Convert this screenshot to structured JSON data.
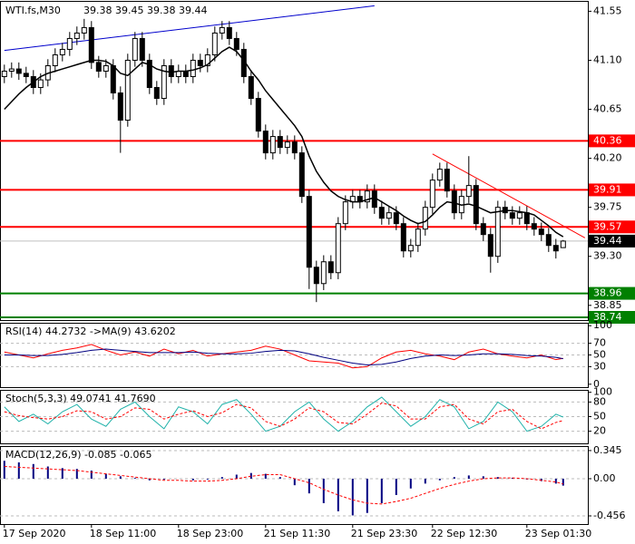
{
  "chart_data": [
    {
      "type": "candlestick",
      "title": "WTI.fs,M30",
      "quote": "39.38 39.45 39.38 39.44",
      "xlim": [
        -0.6,
        80.4
      ],
      "xticks": [
        {
          "value": 0,
          "label": "17 Sep 2020"
        },
        {
          "value": 12,
          "label": "18 Sep 11:00"
        },
        {
          "value": 24,
          "label": "18 Sep 23:00"
        },
        {
          "value": 36,
          "label": "21 Sep 11:30"
        },
        {
          "value": 48,
          "label": "21 Sep 23:30"
        },
        {
          "value": 59,
          "label": "22 Sep 12:30"
        },
        {
          "value": 72,
          "label": "23 Sep 01:30"
        }
      ],
      "ylim": [
        38.715,
        41.645
      ],
      "yticks": [
        41.55,
        {
          "value": 41.1,
          "label": "41.10"
        },
        40.65,
        {
          "value": 40.2,
          "label": "40.20"
        },
        39.75,
        {
          "value": 39.3,
          "label": "39.30"
        },
        38.85
      ],
      "open": [
        40.95,
        41.0,
        41.02,
        40.98,
        40.95,
        40.85,
        40.92,
        41.05,
        41.15,
        41.2,
        41.3,
        41.35,
        41.4,
        41.08,
        41.0,
        41.05,
        40.8,
        40.55,
        41.1,
        41.3,
        41.1,
        40.85,
        40.75,
        41.05,
        40.95,
        41.0,
        40.95,
        41.1,
        41.05,
        41.15,
        41.35,
        41.4,
        41.3,
        41.2,
        40.95,
        40.75,
        40.45,
        40.25,
        40.4,
        40.3,
        40.35,
        40.25,
        39.85,
        39.2,
        39.05,
        39.25,
        39.15,
        39.6,
        39.8,
        39.85,
        39.8,
        39.9,
        39.75,
        39.65,
        39.7,
        39.6,
        39.35,
        39.4,
        39.55,
        39.75,
        40.0,
        40.1,
        39.9,
        39.7,
        39.85,
        39.95,
        39.6,
        39.5,
        39.3,
        39.75,
        39.7,
        39.65,
        39.7,
        39.6,
        39.55,
        39.5,
        39.4,
        39.38
      ],
      "high": [
        41.06,
        41.08,
        41.08,
        41.04,
        41.01,
        40.98,
        41.11,
        41.21,
        41.26,
        41.36,
        41.41,
        41.48,
        41.46,
        41.14,
        41.11,
        41.11,
        40.86,
        41.16,
        41.36,
        41.36,
        41.16,
        40.91,
        41.11,
        41.11,
        41.06,
        41.06,
        41.16,
        41.16,
        41.21,
        41.41,
        41.46,
        41.46,
        41.36,
        41.26,
        41.01,
        40.81,
        40.51,
        40.46,
        40.46,
        40.41,
        40.41,
        40.31,
        39.91,
        39.26,
        39.31,
        39.31,
        39.66,
        39.86,
        39.91,
        39.91,
        39.96,
        39.96,
        39.81,
        39.76,
        39.76,
        39.66,
        39.46,
        39.61,
        39.81,
        40.06,
        40.16,
        40.16,
        39.96,
        39.91,
        40.22,
        40.01,
        39.66,
        39.56,
        39.81,
        39.81,
        39.76,
        39.76,
        39.76,
        39.66,
        39.61,
        39.56,
        39.46,
        39.45
      ],
      "low": [
        40.89,
        40.94,
        40.92,
        40.89,
        40.79,
        40.79,
        40.86,
        40.99,
        41.09,
        41.14,
        41.24,
        41.29,
        41.02,
        40.94,
        40.94,
        40.74,
        40.25,
        40.49,
        41.04,
        41.04,
        40.79,
        40.69,
        40.69,
        40.89,
        40.89,
        40.89,
        40.89,
        40.99,
        40.99,
        41.09,
        41.29,
        41.24,
        41.14,
        40.89,
        40.69,
        40.39,
        40.19,
        40.19,
        40.24,
        40.24,
        40.19,
        39.79,
        39.0,
        38.88,
        38.99,
        39.09,
        39.09,
        39.54,
        39.74,
        39.74,
        39.74,
        39.69,
        39.59,
        39.59,
        39.54,
        39.29,
        39.29,
        39.34,
        39.49,
        39.69,
        39.94,
        39.84,
        39.64,
        39.64,
        39.79,
        39.54,
        39.44,
        39.15,
        39.24,
        39.64,
        39.59,
        39.59,
        39.54,
        39.49,
        39.44,
        39.34,
        39.28,
        39.38
      ],
      "close": [
        41.0,
        41.02,
        40.98,
        40.95,
        40.85,
        40.92,
        41.05,
        41.15,
        41.2,
        41.3,
        41.35,
        41.4,
        41.08,
        41.0,
        41.05,
        40.8,
        40.55,
        41.1,
        41.3,
        41.1,
        40.85,
        40.75,
        41.05,
        40.95,
        41.0,
        40.95,
        41.1,
        41.05,
        41.15,
        41.35,
        41.4,
        41.3,
        41.2,
        40.95,
        40.75,
        40.45,
        40.25,
        40.4,
        40.3,
        40.35,
        40.25,
        39.85,
        39.2,
        39.05,
        39.25,
        39.15,
        39.6,
        39.8,
        39.85,
        39.8,
        39.9,
        39.75,
        39.65,
        39.7,
        39.6,
        39.35,
        39.4,
        39.55,
        39.75,
        40.0,
        40.1,
        39.9,
        39.7,
        39.85,
        39.95,
        39.6,
        39.5,
        39.3,
        39.75,
        39.7,
        39.65,
        39.7,
        39.6,
        39.55,
        39.5,
        39.4,
        39.35,
        39.44
      ],
      "ma": {
        "color": "#000000",
        "values": [
          40.65,
          40.72,
          40.79,
          40.85,
          40.9,
          40.95,
          40.98,
          41.0,
          41.02,
          41.04,
          41.06,
          41.08,
          41.1,
          41.1,
          41.09,
          41.05,
          40.98,
          40.96,
          41.02,
          41.08,
          41.06,
          41.02,
          41.0,
          40.99,
          41.0,
          41.0,
          41.01,
          41.03,
          41.06,
          41.12,
          41.18,
          41.22,
          41.18,
          41.1,
          41.0,
          40.92,
          40.82,
          40.74,
          40.66,
          40.58,
          40.5,
          40.4,
          40.22,
          40.08,
          39.98,
          39.9,
          39.85,
          39.82,
          39.8,
          39.8,
          39.82,
          39.84,
          39.8,
          39.76,
          39.72,
          39.67,
          39.63,
          39.6,
          39.62,
          39.68,
          39.75,
          39.8,
          39.79,
          39.77,
          39.78,
          39.76,
          39.73,
          39.7,
          39.71,
          39.72,
          39.72,
          39.71,
          39.7,
          39.68,
          39.63,
          39.58,
          39.52,
          39.48
        ]
      },
      "trendlines": [
        {
          "color": "#0000cc",
          "x": [
            0,
            51
          ],
          "y": [
            41.19,
            41.6
          ]
        },
        {
          "color": "#ff0000",
          "x": [
            59,
            80
          ],
          "y": [
            40.24,
            39.47
          ]
        }
      ],
      "levels": [
        {
          "value": 40.36,
          "color": "#ff0000"
        },
        {
          "value": 39.91,
          "color": "#ff0000"
        },
        {
          "value": 39.57,
          "color": "#ff0000"
        },
        {
          "value": 38.96,
          "color": "#008000"
        },
        {
          "value": 38.74,
          "color": "#008000"
        }
      ],
      "current": {
        "value": 39.44,
        "color": "#000000"
      }
    },
    {
      "type": "line",
      "title": "RSI(14) 44.2732 ->MA(9) 43.6202",
      "x": [
        0,
        2,
        4,
        6,
        8,
        10,
        12,
        14,
        16,
        18,
        20,
        22,
        24,
        26,
        28,
        30,
        32,
        34,
        36,
        38,
        40,
        42,
        44,
        46,
        48,
        50,
        52,
        54,
        56,
        58,
        60,
        62,
        64,
        66,
        68,
        70,
        72,
        74,
        76,
        77
      ],
      "ylim": [
        -5,
        105
      ],
      "yticks": [
        100,
        70,
        50,
        30,
        0
      ],
      "series": [
        {
          "color": "#ff0000",
          "values": [
            55,
            50,
            45,
            52,
            58,
            62,
            68,
            58,
            50,
            55,
            48,
            60,
            52,
            58,
            48,
            52,
            55,
            58,
            65,
            60,
            50,
            40,
            38,
            36,
            28,
            30,
            45,
            55,
            58,
            52,
            48,
            42,
            55,
            60,
            52,
            48,
            45,
            50,
            42,
            44.27
          ]
        },
        {
          "color": "#000080",
          "values": [
            50,
            50,
            49,
            49,
            51,
            54,
            58,
            60,
            58,
            56,
            54,
            54,
            54,
            55,
            53,
            52,
            52,
            53,
            56,
            58,
            57,
            52,
            46,
            41,
            36,
            33,
            34,
            38,
            44,
            48,
            50,
            49,
            50,
            52,
            52,
            51,
            49,
            48,
            46,
            43.62
          ]
        }
      ]
    },
    {
      "type": "line",
      "title": "Stoch(5,3,3) 49.0741 41.7690",
      "x": [
        0,
        2,
        4,
        6,
        8,
        10,
        12,
        14,
        16,
        18,
        20,
        22,
        24,
        26,
        28,
        30,
        32,
        34,
        36,
        38,
        40,
        42,
        44,
        46,
        48,
        50,
        52,
        54,
        56,
        58,
        60,
        62,
        64,
        66,
        68,
        70,
        72,
        74,
        76,
        77
      ],
      "ylim": [
        -5,
        105
      ],
      "yticks": [
        100,
        80,
        50,
        20
      ],
      "series": [
        {
          "color": "#20b2aa",
          "values": [
            70,
            40,
            55,
            35,
            60,
            75,
            45,
            30,
            65,
            80,
            50,
            25,
            70,
            60,
            35,
            75,
            85,
            55,
            20,
            30,
            60,
            80,
            45,
            20,
            40,
            70,
            90,
            60,
            30,
            50,
            85,
            70,
            25,
            40,
            80,
            60,
            20,
            30,
            55,
            49.07
          ]
        },
        {
          "color": "#ff0000",
          "dashed": true,
          "values": [
            60,
            52,
            48,
            45,
            50,
            62,
            60,
            45,
            50,
            68,
            65,
            45,
            55,
            62,
            50,
            58,
            75,
            68,
            40,
            30,
            45,
            68,
            60,
            38,
            35,
            55,
            78,
            72,
            45,
            45,
            70,
            75,
            45,
            35,
            60,
            65,
            40,
            25,
            38,
            41.77
          ]
        }
      ]
    },
    {
      "type": "combo",
      "title": "MACD(12,26,9) -0.085 -0.065",
      "x": [
        0,
        2,
        4,
        6,
        8,
        10,
        12,
        14,
        16,
        18,
        20,
        22,
        24,
        26,
        28,
        30,
        32,
        34,
        36,
        38,
        40,
        42,
        44,
        46,
        48,
        50,
        52,
        54,
        56,
        58,
        60,
        62,
        64,
        66,
        68,
        70,
        72,
        74,
        76,
        77
      ],
      "ylim": [
        -0.556,
        0.4
      ],
      "yticks": [
        0.345,
        {
          "value": 0,
          "label": "0.00"
        },
        -0.456
      ],
      "series": [
        {
          "kind": "bar",
          "color": "#000080",
          "values": [
            0.22,
            0.2,
            0.18,
            0.15,
            0.13,
            0.12,
            0.1,
            0.06,
            0.03,
            0.01,
            -0.02,
            -0.01,
            0.0,
            -0.02,
            -0.01,
            0.02,
            0.05,
            0.07,
            0.06,
            0.02,
            -0.08,
            -0.18,
            -0.3,
            -0.4,
            -0.45,
            -0.42,
            -0.3,
            -0.2,
            -0.12,
            -0.06,
            -0.02,
            0.02,
            0.04,
            0.03,
            0.02,
            0.01,
            -0.01,
            -0.03,
            -0.06,
            -0.085
          ]
        },
        {
          "kind": "line",
          "color": "#ff0000",
          "dashed": true,
          "values": [
            0.15,
            0.14,
            0.13,
            0.12,
            0.11,
            0.1,
            0.08,
            0.06,
            0.04,
            0.02,
            0.0,
            -0.02,
            -0.02,
            -0.03,
            -0.03,
            -0.02,
            0.0,
            0.03,
            0.05,
            0.05,
            0.0,
            -0.05,
            -0.13,
            -0.2,
            -0.26,
            -0.3,
            -0.31,
            -0.28,
            -0.24,
            -0.18,
            -0.12,
            -0.07,
            -0.03,
            0.0,
            0.01,
            0.01,
            0.0,
            -0.02,
            -0.04,
            -0.065
          ]
        }
      ]
    }
  ]
}
